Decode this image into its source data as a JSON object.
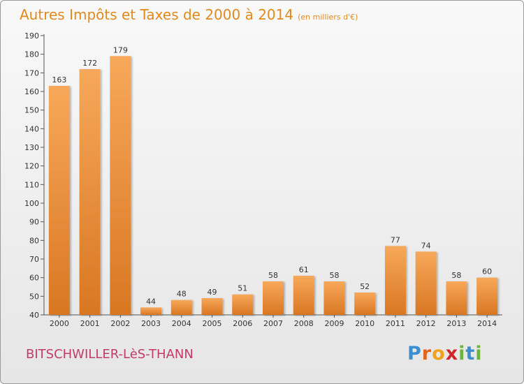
{
  "header": {
    "title": "Autres Impôts et Taxes de 2000 à 2014",
    "subtitle": "(en milliers d'€)"
  },
  "footer": {
    "commune": "BITSCHWILLER-LèS-THANN",
    "logo_letters": [
      "P",
      "r",
      "o",
      "x",
      "i",
      "t",
      "i"
    ],
    "logo_colors": [
      "#3a8fd0",
      "#e0671e",
      "#f0a21e",
      "#d2252a",
      "#6cb43f",
      "#3a8fd0",
      "#6cb43f"
    ]
  },
  "colors": {
    "bar_top": "#f7a85a",
    "bar_bottom": "#d97722",
    "title": "#e08a1e"
  },
  "chart_data": {
    "type": "bar",
    "title": "Autres Impôts et Taxes de 2000 à 2014",
    "subtitle": "(en milliers d'€)",
    "categories": [
      "2000",
      "2001",
      "2002",
      "2003",
      "2004",
      "2005",
      "2006",
      "2007",
      "2008",
      "2009",
      "2010",
      "2011",
      "2012",
      "2013",
      "2014"
    ],
    "values": [
      163,
      172,
      179,
      44,
      48,
      49,
      51,
      58,
      61,
      58,
      52,
      77,
      74,
      58,
      60
    ],
    "ylim": [
      40,
      190
    ],
    "yticks": [
      40,
      50,
      60,
      70,
      80,
      90,
      100,
      110,
      120,
      130,
      140,
      150,
      160,
      170,
      180,
      190
    ],
    "grid": false,
    "legend": "none"
  }
}
